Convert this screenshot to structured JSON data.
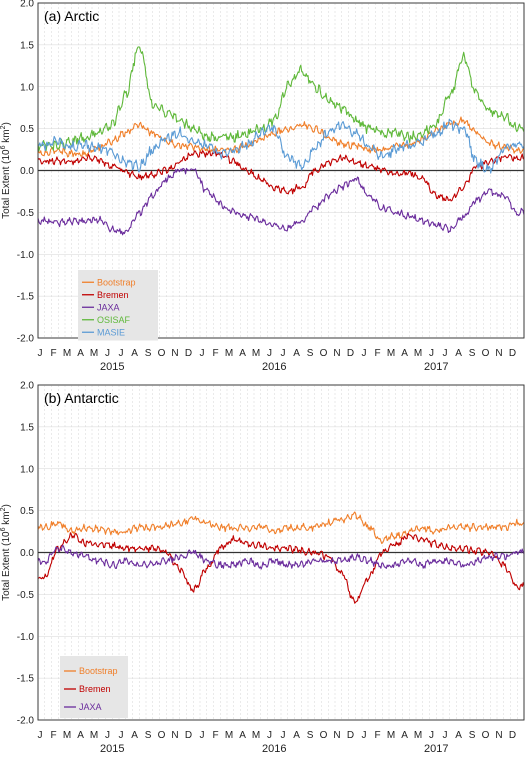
{
  "panels": [
    {
      "title": "(a) Arctic",
      "ylabel_main": "Total Extent (10",
      "ylabel_sup": "6",
      "ylabel_mid": " km",
      "ylabel_sup2": "2",
      "ylabel_end": ")",
      "y_ticks": [
        "2.0",
        "1.5",
        "1.0",
        "0.5",
        "0.0",
        "-0.5",
        "-1.0",
        "-1.5",
        "-2.0"
      ],
      "month_labels": [
        "J",
        "F",
        "M",
        "A",
        "M",
        "J",
        "J",
        "A",
        "S",
        "O",
        "N",
        "D",
        "J",
        "F",
        "M",
        "A",
        "M",
        "J",
        "J",
        "A",
        "S",
        "O",
        "N",
        "D",
        "J",
        "F",
        "M",
        "A",
        "M",
        "J",
        "J",
        "A",
        "S",
        "O",
        "N",
        "D"
      ],
      "year_labels": [
        "2015",
        "2016",
        "2017"
      ],
      "legend": [
        "Bootstrap",
        "Bremen",
        "JAXA",
        "OSISAF",
        "MASIE"
      ]
    },
    {
      "title": "(b) Antarctic",
      "ylabel_main": "Total Extent (10",
      "ylabel_sup": "6",
      "ylabel_mid": " km",
      "ylabel_sup2": "2",
      "ylabel_end": ")",
      "y_ticks": [
        "2.0",
        "1.5",
        "1.0",
        "0.5",
        "0.0",
        "-0.5",
        "-1.0",
        "-1.5",
        "-2.0"
      ],
      "month_labels": [
        "J",
        "F",
        "M",
        "A",
        "M",
        "J",
        "J",
        "A",
        "S",
        "O",
        "N",
        "D",
        "J",
        "F",
        "M",
        "A",
        "M",
        "J",
        "J",
        "A",
        "S",
        "O",
        "N",
        "D",
        "J",
        "F",
        "M",
        "A",
        "M",
        "J",
        "J",
        "A",
        "S",
        "O",
        "N",
        "D"
      ],
      "year_labels": [
        "2015",
        "2016",
        "2017"
      ],
      "legend": [
        "Bootstrap",
        "Bremen",
        "JAXA"
      ]
    }
  ],
  "colors": {
    "Bootstrap": "#f07f2a",
    "Bremen": "#c00000",
    "JAXA": "#6a2c9c",
    "OSISAF": "#5fb83a",
    "MASIE": "#5b9bd5",
    "grid": "#d4d4d4",
    "axis": "#333333"
  },
  "chart_data": [
    {
      "type": "line",
      "title": "(a) Arctic",
      "xlabel": "",
      "ylabel": "Total Extent (10^6 km^2)",
      "ylim": [
        -2.0,
        2.0
      ],
      "x_range": [
        "2015-01",
        "2017-12"
      ],
      "grid": true,
      "legend_position": "bottom-left",
      "series": [
        {
          "name": "Bootstrap",
          "values": [
            0.2,
            0.25,
            0.2,
            0.2,
            0.28,
            0.35,
            0.45,
            0.55,
            0.45,
            0.35,
            0.3,
            0.28,
            0.25,
            0.25,
            0.25,
            0.3,
            0.38,
            0.45,
            0.5,
            0.55,
            0.5,
            0.4,
            0.32,
            0.3,
            0.25,
            0.25,
            0.3,
            0.3,
            0.38,
            0.48,
            0.55,
            0.6,
            0.45,
            0.32,
            0.28,
            0.25
          ]
        },
        {
          "name": "Bremen",
          "values": [
            0.12,
            0.12,
            0.1,
            0.15,
            0.12,
            0.05,
            -0.02,
            -0.08,
            -0.05,
            0.0,
            0.1,
            0.2,
            0.2,
            0.2,
            0.1,
            0.0,
            -0.1,
            -0.2,
            -0.25,
            -0.2,
            0.0,
            0.1,
            0.15,
            0.1,
            0.05,
            0.0,
            -0.05,
            -0.02,
            -0.1,
            -0.3,
            -0.35,
            -0.2,
            0.05,
            0.1,
            0.15,
            0.15
          ]
        },
        {
          "name": "JAXA",
          "values": [
            -0.6,
            -0.62,
            -0.6,
            -0.6,
            -0.58,
            -0.7,
            -0.75,
            -0.5,
            -0.3,
            -0.1,
            0.0,
            0.02,
            -0.25,
            -0.4,
            -0.5,
            -0.55,
            -0.6,
            -0.65,
            -0.7,
            -0.6,
            -0.45,
            -0.3,
            -0.2,
            -0.1,
            -0.3,
            -0.45,
            -0.5,
            -0.55,
            -0.6,
            -0.65,
            -0.7,
            -0.55,
            -0.35,
            -0.25,
            -0.3,
            -0.5
          ]
        },
        {
          "name": "OSISAF",
          "values": [
            0.3,
            0.3,
            0.35,
            0.4,
            0.45,
            0.55,
            0.9,
            1.5,
            0.8,
            0.7,
            0.6,
            0.5,
            0.4,
            0.4,
            0.4,
            0.45,
            0.5,
            0.6,
            1.0,
            1.2,
            1.0,
            0.85,
            0.75,
            0.6,
            0.5,
            0.45,
            0.45,
            0.4,
            0.45,
            0.55,
            0.9,
            1.35,
            0.9,
            0.7,
            0.65,
            0.5
          ]
        },
        {
          "name": "MASIE",
          "values": [
            0.3,
            0.35,
            0.28,
            0.3,
            0.28,
            0.2,
            0.1,
            0.05,
            0.25,
            0.4,
            0.45,
            0.35,
            0.3,
            0.2,
            0.25,
            0.3,
            0.45,
            0.5,
            0.15,
            0.05,
            0.25,
            0.45,
            0.55,
            0.45,
            0.3,
            0.15,
            0.25,
            0.3,
            0.35,
            0.45,
            0.55,
            0.5,
            0.1,
            0.0,
            0.25,
            0.3
          ]
        }
      ]
    },
    {
      "type": "line",
      "title": "(b) Antarctic",
      "xlabel": "",
      "ylabel": "Total Extent (10^6 km^2)",
      "ylim": [
        -2.0,
        2.0
      ],
      "x_range": [
        "2015-01",
        "2017-12"
      ],
      "grid": true,
      "legend_position": "bottom-left",
      "series": [
        {
          "name": "Bootstrap",
          "values": [
            0.3,
            0.35,
            0.25,
            0.3,
            0.28,
            0.25,
            0.25,
            0.3,
            0.3,
            0.32,
            0.35,
            0.4,
            0.35,
            0.3,
            0.3,
            0.28,
            0.3,
            0.25,
            0.3,
            0.3,
            0.3,
            0.35,
            0.4,
            0.45,
            0.3,
            0.15,
            0.2,
            0.25,
            0.3,
            0.25,
            0.3,
            0.3,
            0.3,
            0.3,
            0.3,
            0.35
          ]
        },
        {
          "name": "Bremen",
          "values": [
            -0.3,
            0.05,
            0.2,
            0.12,
            0.1,
            0.08,
            0.05,
            0.05,
            0.05,
            0.0,
            -0.2,
            -0.45,
            -0.2,
            0.05,
            0.15,
            0.1,
            0.08,
            0.05,
            0.05,
            0.02,
            0.0,
            -0.05,
            -0.25,
            -0.6,
            -0.3,
            0.0,
            0.1,
            0.2,
            0.15,
            0.1,
            0.05,
            0.05,
            0.02,
            0.0,
            -0.15,
            -0.4
          ]
        },
        {
          "name": "JAXA",
          "values": [
            -0.1,
            0.05,
            0.0,
            -0.05,
            -0.1,
            -0.15,
            -0.1,
            -0.15,
            -0.15,
            -0.1,
            -0.05,
            0.0,
            -0.1,
            -0.15,
            -0.15,
            -0.1,
            -0.15,
            -0.1,
            -0.15,
            -0.15,
            -0.1,
            -0.1,
            -0.1,
            -0.05,
            -0.1,
            -0.15,
            -0.15,
            -0.1,
            -0.15,
            -0.1,
            -0.1,
            -0.15,
            -0.1,
            -0.05,
            -0.05,
            0.0
          ]
        }
      ]
    }
  ]
}
